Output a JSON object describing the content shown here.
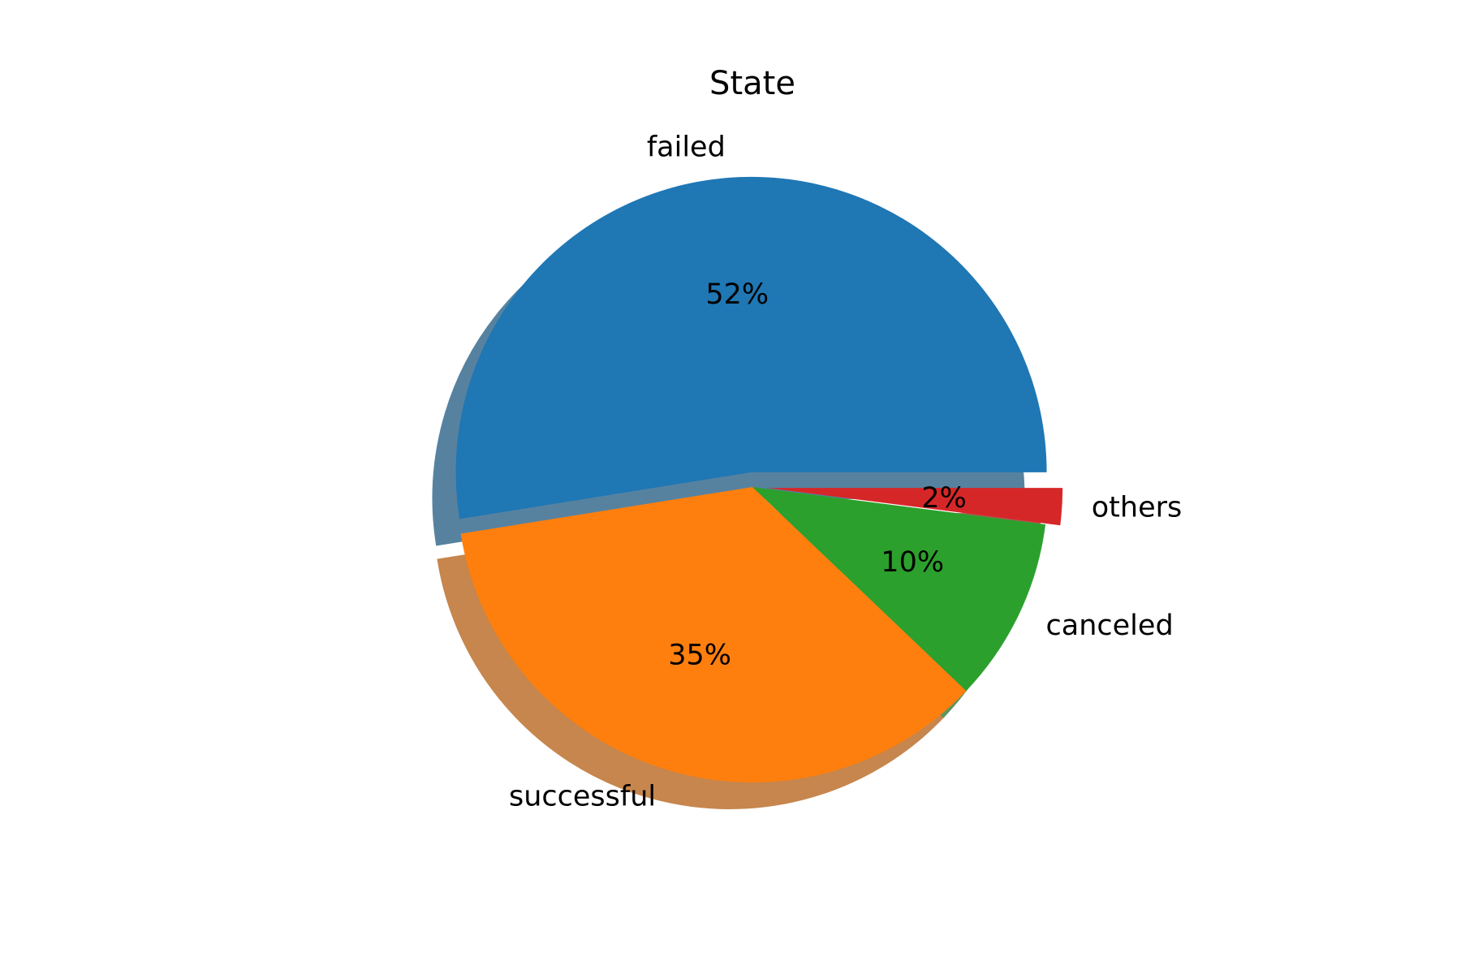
{
  "chart_data": {
    "type": "pie",
    "title": "State",
    "categories": [
      "failed",
      "successful",
      "canceled",
      "others"
    ],
    "values": [
      52,
      35,
      10,
      2
    ],
    "value_labels": [
      "52%",
      "35%",
      "10%",
      "2%"
    ],
    "colors": [
      "#1f77b4",
      "#ff7f0e",
      "#2ca02c",
      "#d62728"
    ],
    "start_angle_deg": 0,
    "direction": "counterclockwise",
    "exploded": [
      "failed",
      "others"
    ],
    "shadow": true,
    "legend": false
  }
}
